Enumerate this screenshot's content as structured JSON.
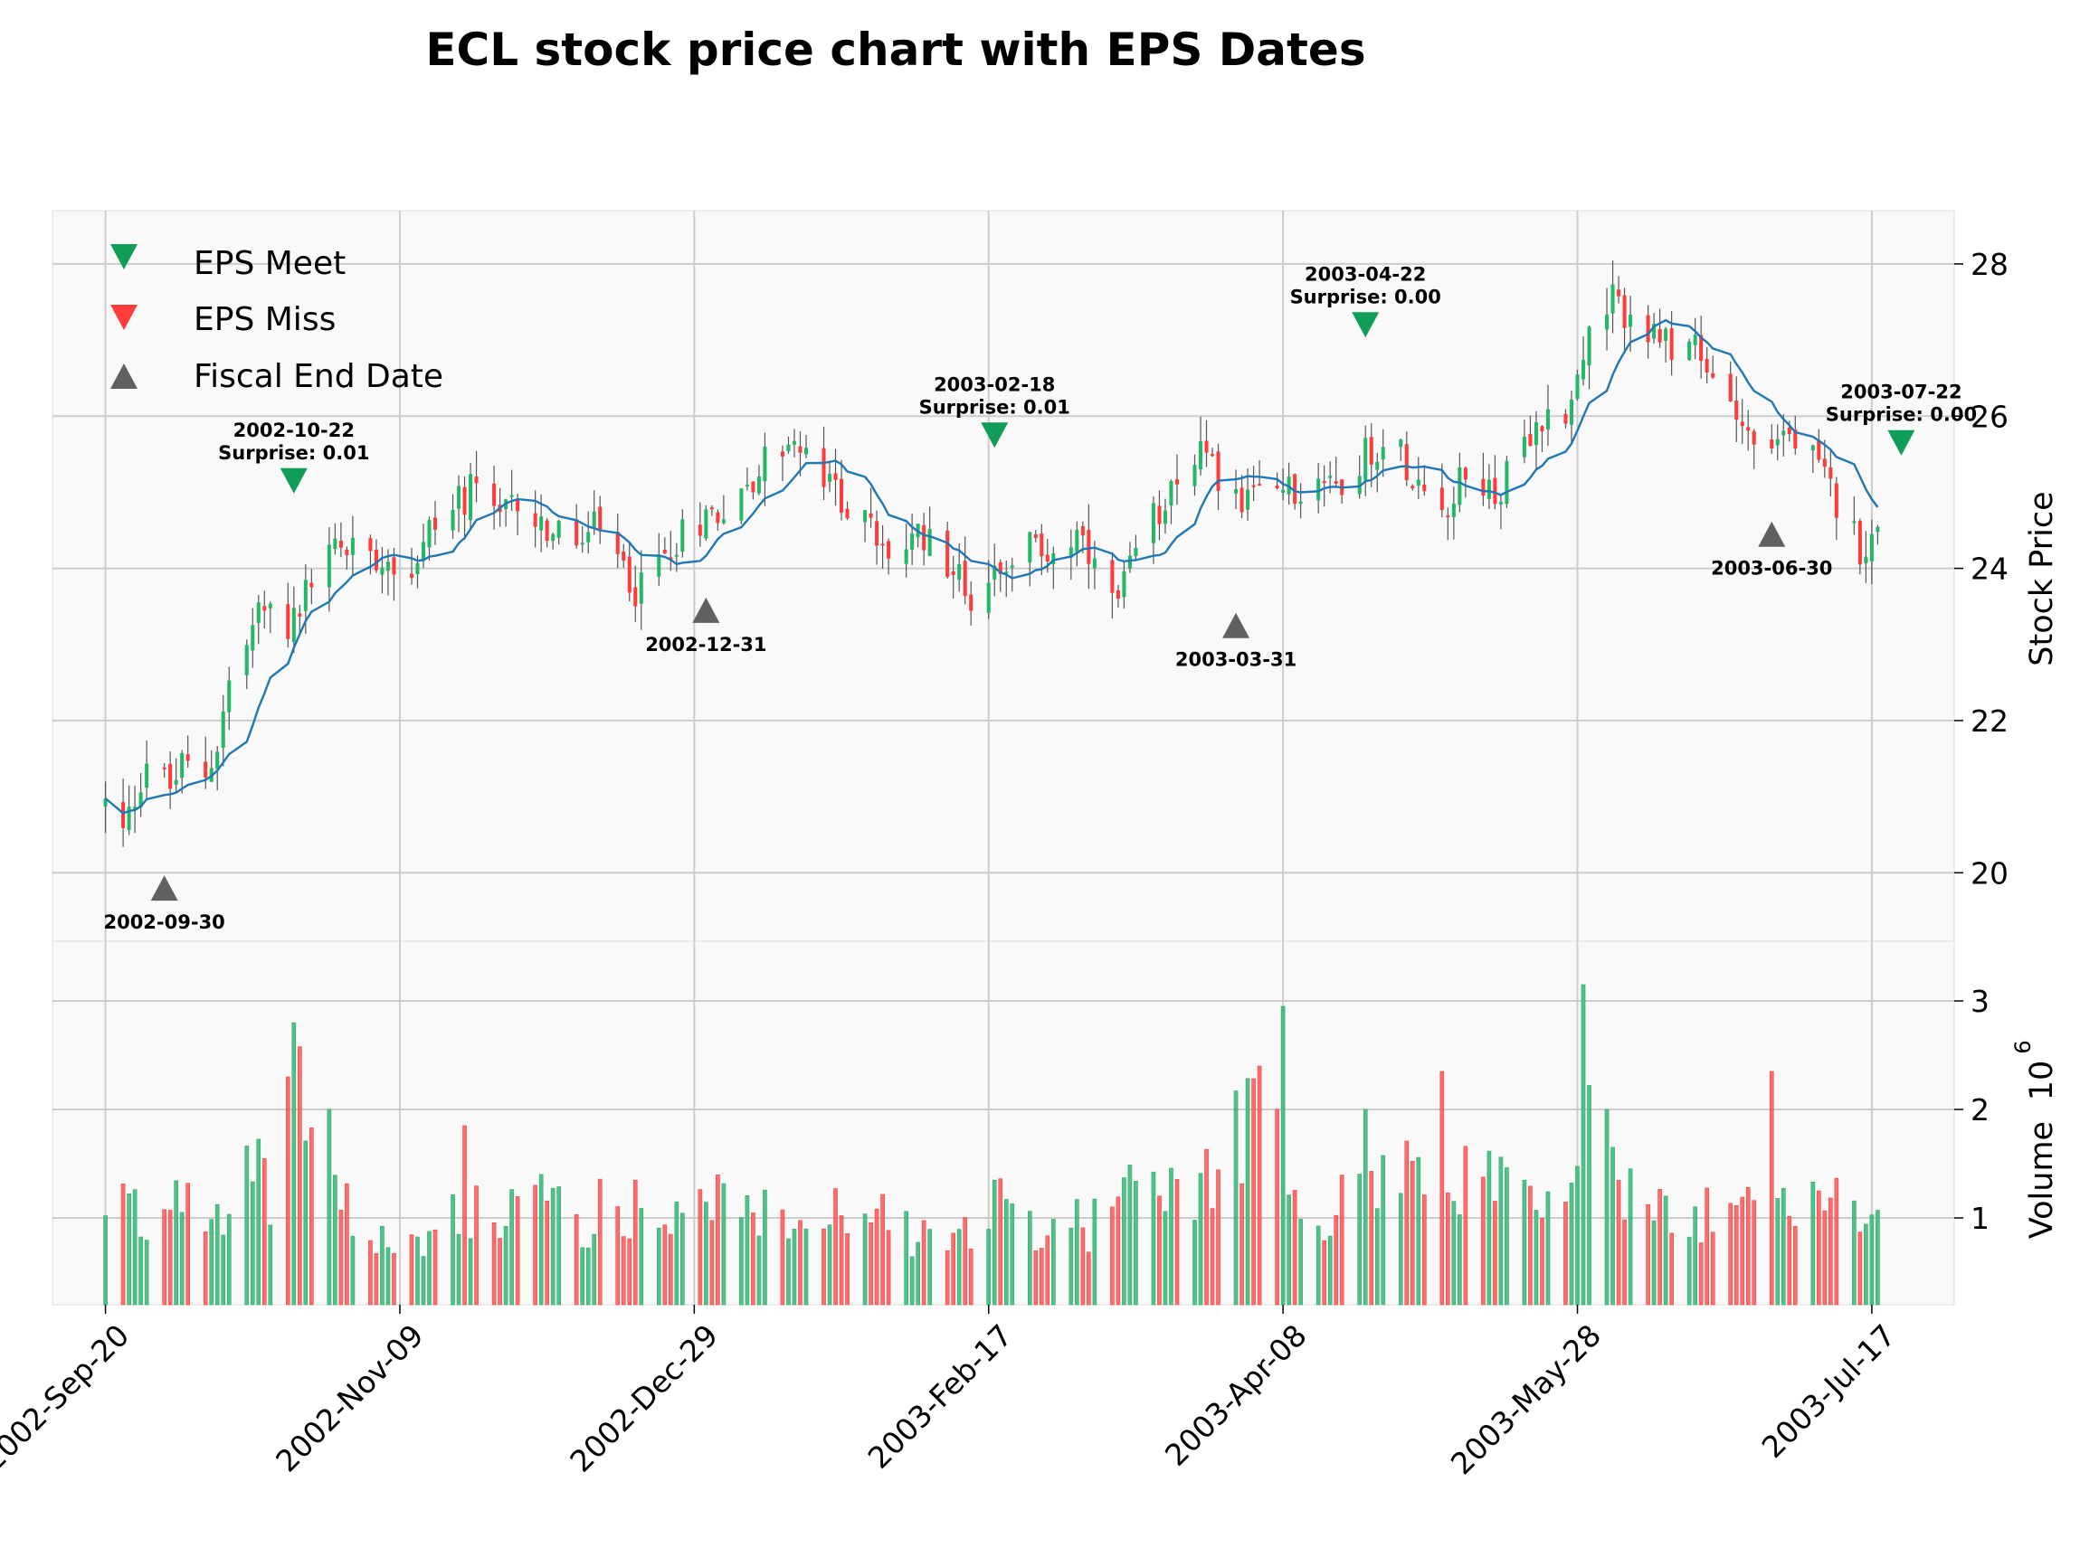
{
  "chart_data": {
    "type": "candlestick",
    "title": "ECL stock price chart with EPS Dates",
    "ylabel_price": "Stock Price",
    "ylabel_volume": "Volume",
    "volume_exponent_label": "10",
    "volume_exponent_power": "6",
    "x_tick_labels": [
      "2002-Sep-20",
      "2002-Nov-09",
      "2002-Dec-29",
      "2003-Feb-17",
      "2003-Apr-08",
      "2003-May-28",
      "2003-Jul-17"
    ],
    "x_tick_dates": [
      "2002-09-20",
      "2002-11-09",
      "2002-12-29",
      "2003-02-17",
      "2003-04-08",
      "2003-05-28",
      "2003-07-17"
    ],
    "xlim": [
      "2002-09-11",
      "2003-07-31"
    ],
    "price_ylim": [
      19.1,
      28.7
    ],
    "price_y_ticks": [
      20,
      22,
      24,
      26,
      28
    ],
    "volume_ylim": [
      0.2,
      3.55
    ],
    "volume_y_ticks": [
      1,
      2,
      3
    ],
    "grid": true,
    "legend": {
      "placement": "top-left",
      "entries": [
        {
          "label": "EPS Meet",
          "marker": "triangle-down",
          "color": "#109d58"
        },
        {
          "label": "EPS Miss",
          "marker": "triangle-down",
          "color": "#ff3b3b"
        },
        {
          "label": "Fiscal End Date",
          "marker": "triangle-up",
          "color": "#606060"
        }
      ]
    },
    "colors": {
      "up": "#22b868",
      "down": "#ff3b3b",
      "up_volume": "#3dbb7c",
      "down_volume": "#ff5c5c",
      "moving_average": "#1f77b4",
      "eps_meet": "#109d58",
      "fiscal_end": "#606060",
      "panel_bg": "#f9f9f9",
      "grid": "#cccccc"
    },
    "eps_events": [
      {
        "date": "2002-10-22",
        "label": "2002-10-22",
        "surprise": "Surprise: 0.01",
        "price": 25.15
      },
      {
        "date": "2003-02-18",
        "label": "2003-02-18",
        "surprise": "Surprise: 0.01",
        "price": 25.75
      },
      {
        "date": "2003-04-22",
        "label": "2003-04-22",
        "surprise": "Surprise: 0.00",
        "price": 27.2
      },
      {
        "date": "2003-07-22",
        "label": "2003-07-22",
        "surprise": "Surprise: 0.00",
        "price": 25.65
      }
    ],
    "fiscal_end_dates": [
      {
        "date": "2002-09-30",
        "label": "2002-09-30",
        "price": 19.8
      },
      {
        "date": "2002-12-31",
        "label": "2002-12-31",
        "price": 23.45
      },
      {
        "date": "2003-03-31",
        "label": "2003-03-31",
        "price": 23.25
      },
      {
        "date": "2003-06-30",
        "label": "2003-06-30",
        "price": 24.45
      }
    ],
    "price_anchors": [
      [
        "2002-09-20",
        20.9
      ],
      [
        "2002-09-23",
        20.5
      ],
      [
        "2002-09-25",
        21.0
      ],
      [
        "2002-09-27",
        21.5
      ],
      [
        "2002-10-01",
        21.1
      ],
      [
        "2002-10-03",
        21.4
      ],
      [
        "2002-10-07",
        21.3
      ],
      [
        "2002-10-09",
        21.7
      ],
      [
        "2002-10-11",
        22.5
      ],
      [
        "2002-10-14",
        23.0
      ],
      [
        "2002-10-16",
        23.4
      ],
      [
        "2002-10-18",
        23.5
      ],
      [
        "2002-10-21",
        23.2
      ],
      [
        "2002-10-23",
        23.4
      ],
      [
        "2002-10-25",
        24.0
      ],
      [
        "2002-10-29",
        24.3
      ],
      [
        "2002-11-01",
        24.3
      ],
      [
        "2002-11-06",
        24.2
      ],
      [
        "2002-11-11",
        24.0
      ],
      [
        "2002-11-14",
        24.5
      ],
      [
        "2002-11-18",
        24.8
      ],
      [
        "2002-11-21",
        25.0
      ],
      [
        "2002-11-26",
        24.6
      ],
      [
        "2002-11-29",
        24.9
      ],
      [
        "2002-12-04",
        24.5
      ],
      [
        "2002-12-09",
        24.3
      ],
      [
        "2002-12-12",
        24.5
      ],
      [
        "2002-12-17",
        24.0
      ],
      [
        "2002-12-19",
        23.7
      ],
      [
        "2002-12-24",
        24.2
      ],
      [
        "2002-12-27",
        24.5
      ],
      [
        "2003-01-02",
        24.8
      ],
      [
        "2003-01-07",
        25.0
      ],
      [
        "2003-01-10",
        25.4
      ],
      [
        "2003-01-14",
        25.7
      ],
      [
        "2003-01-17",
        25.4
      ],
      [
        "2003-01-22",
        25.0
      ],
      [
        "2003-01-27",
        24.6
      ],
      [
        "2003-01-30",
        24.2
      ],
      [
        "2003-02-04",
        24.3
      ],
      [
        "2003-02-07",
        24.5
      ],
      [
        "2003-02-11",
        24.0
      ],
      [
        "2003-02-14",
        23.6
      ],
      [
        "2003-02-19",
        24.1
      ],
      [
        "2003-02-24",
        24.3
      ],
      [
        "2003-02-27",
        24.2
      ],
      [
        "2003-03-04",
        24.4
      ],
      [
        "2003-03-07",
        23.9
      ],
      [
        "2003-03-11",
        23.5
      ],
      [
        "2003-03-14",
        24.2
      ],
      [
        "2003-03-18",
        24.8
      ],
      [
        "2003-03-21",
        25.3
      ],
      [
        "2003-03-25",
        25.5
      ],
      [
        "2003-03-28",
        25.2
      ],
      [
        "2003-04-02",
        24.8
      ],
      [
        "2003-04-07",
        25.3
      ],
      [
        "2003-04-10",
        24.9
      ],
      [
        "2003-04-14",
        25.3
      ],
      [
        "2003-04-17",
        25.1
      ],
      [
        "2003-04-23",
        25.6
      ],
      [
        "2003-04-28",
        25.5
      ],
      [
        "2003-05-01",
        25.2
      ],
      [
        "2003-05-06",
        24.9
      ],
      [
        "2003-05-09",
        25.2
      ],
      [
        "2003-05-14",
        25.0
      ],
      [
        "2003-05-19",
        25.5
      ],
      [
        "2003-05-22",
        25.9
      ],
      [
        "2003-05-27",
        26.2
      ],
      [
        "2003-05-30",
        27.0
      ],
      [
        "2003-06-03",
        27.5
      ],
      [
        "2003-06-06",
        27.3
      ],
      [
        "2003-06-11",
        26.9
      ],
      [
        "2003-06-16",
        27.0
      ],
      [
        "2003-06-19",
        26.5
      ],
      [
        "2003-06-24",
        26.2
      ],
      [
        "2003-06-27",
        25.6
      ],
      [
        "2003-07-02",
        25.8
      ],
      [
        "2003-07-07",
        25.4
      ],
      [
        "2003-07-10",
        25.0
      ],
      [
        "2003-07-15",
        24.3
      ],
      [
        "2003-07-18",
        24.4
      ]
    ],
    "volume_anchors": [
      [
        "2002-09-20",
        0.95
      ],
      [
        "2002-09-24",
        1.2
      ],
      [
        "2002-09-27",
        0.85
      ],
      [
        "2002-10-01",
        1.3
      ],
      [
        "2002-10-04",
        1.45
      ],
      [
        "2002-10-08",
        1.15
      ],
      [
        "2002-10-11",
        1.2
      ],
      [
        "2002-10-15",
        1.45
      ],
      [
        "2002-10-18",
        1.25
      ],
      [
        "2002-10-22",
        2.5
      ],
      [
        "2002-10-25",
        1.7
      ],
      [
        "2002-10-29",
        1.3
      ],
      [
        "2002-11-01",
        0.95
      ],
      [
        "2002-11-06",
        0.85
      ],
      [
        "2002-11-12",
        0.75
      ],
      [
        "2002-11-15",
        1.0
      ],
      [
        "2002-11-20",
        1.0
      ],
      [
        "2002-11-25",
        1.1
      ],
      [
        "2002-11-29",
        1.05
      ],
      [
        "2002-12-04",
        1.3
      ],
      [
        "2002-12-09",
        0.9
      ],
      [
        "2002-12-13",
        1.1
      ],
      [
        "2002-12-18",
        1.15
      ],
      [
        "2002-12-23",
        0.85
      ],
      [
        "2002-12-27",
        0.95
      ],
      [
        "2003-01-02",
        1.2
      ],
      [
        "2003-01-07",
        1.25
      ],
      [
        "2003-01-10",
        1.1
      ],
      [
        "2003-01-15",
        0.85
      ],
      [
        "2003-01-21",
        1.0
      ],
      [
        "2003-01-27",
        1.2
      ],
      [
        "2003-01-31",
        1.05
      ],
      [
        "2003-02-05",
        0.85
      ],
      [
        "2003-02-10",
        0.9
      ],
      [
        "2003-02-14",
        1.0
      ],
      [
        "2003-02-19",
        1.2
      ],
      [
        "2003-02-24",
        0.85
      ],
      [
        "2003-02-28",
        0.9
      ],
      [
        "2003-03-05",
        0.95
      ],
      [
        "2003-03-10",
        1.05
      ],
      [
        "2003-03-14",
        1.25
      ],
      [
        "2003-03-19",
        1.3
      ],
      [
        "2003-03-24",
        1.05
      ],
      [
        "2003-03-28",
        1.6
      ],
      [
        "2003-04-02",
        1.9
      ],
      [
        "2003-04-07",
        2.0
      ],
      [
        "2003-04-10",
        1.3
      ],
      [
        "2003-04-15",
        1.0
      ],
      [
        "2003-04-18",
        1.3
      ],
      [
        "2003-04-23",
        1.3
      ],
      [
        "2003-04-28",
        1.6
      ],
      [
        "2003-05-02",
        1.4
      ],
      [
        "2003-05-07",
        1.25
      ],
      [
        "2003-05-12",
        1.6
      ],
      [
        "2003-05-16",
        1.3
      ],
      [
        "2003-05-21",
        1.25
      ],
      [
        "2003-05-27",
        1.55
      ],
      [
        "2003-05-30",
        2.1
      ],
      [
        "2003-06-04",
        1.3
      ],
      [
        "2003-06-09",
        1.1
      ],
      [
        "2003-06-13",
        0.95
      ],
      [
        "2003-06-18",
        1.05
      ],
      [
        "2003-06-23",
        1.1
      ],
      [
        "2003-06-27",
        1.3
      ],
      [
        "2003-07-02",
        1.35
      ],
      [
        "2003-07-08",
        1.25
      ],
      [
        "2003-07-11",
        1.5
      ],
      [
        "2003-07-16",
        1.1
      ],
      [
        "2003-07-18",
        1.3
      ]
    ],
    "volume_spikes": [
      [
        "2002-10-21",
        2.3
      ],
      [
        "2002-10-22",
        2.8
      ],
      [
        "2002-10-28",
        2.0
      ],
      [
        "2002-11-20",
        1.85
      ],
      [
        "2003-04-04",
        2.4
      ],
      [
        "2003-04-08",
        2.95
      ],
      [
        "2003-04-22",
        2.0
      ],
      [
        "2003-05-05",
        2.35
      ],
      [
        "2003-05-29",
        3.15
      ],
      [
        "2003-06-30",
        2.35
      ]
    ]
  }
}
